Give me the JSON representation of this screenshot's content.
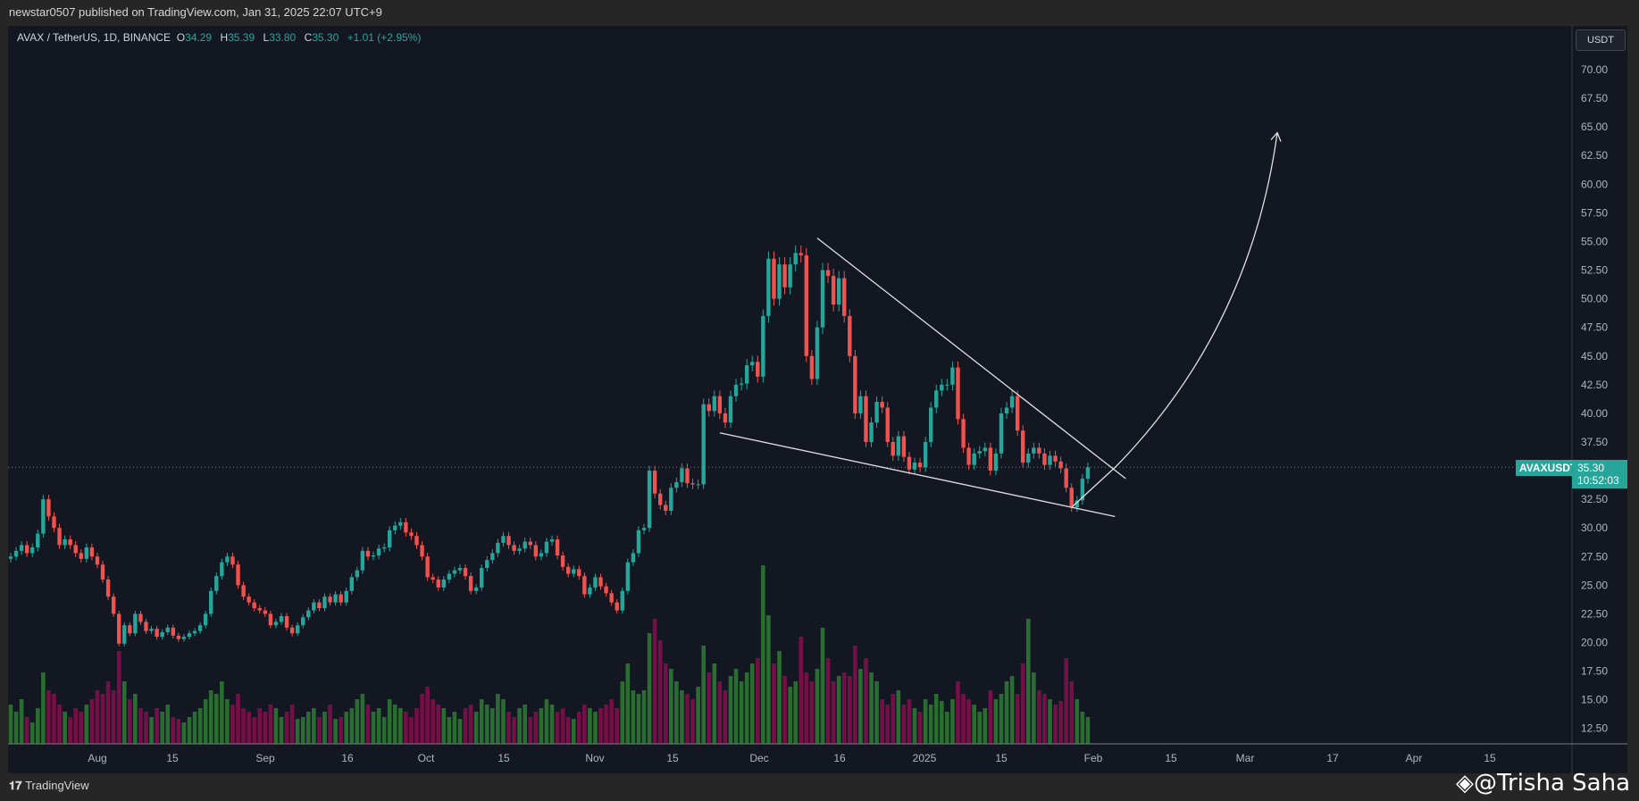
{
  "header": {
    "published": "newstar0507 published on TradingView.com, Jan 31, 2025 22:07 UTC+9"
  },
  "legend": {
    "symbol": "AVAX / TetherUS, 1D, BINANCE",
    "o_label": "O",
    "o": "34.29",
    "h_label": "H",
    "h": "35.39",
    "l_label": "L",
    "l": "33.80",
    "c_label": "C",
    "c": "35.30",
    "change": "+1.01 (+2.95%)"
  },
  "price_axis": {
    "currency": "USDT",
    "last_symbol": "AVAXUSDT",
    "last_price": "35.30",
    "countdown": "10:52:03"
  },
  "footer": {
    "logo": "TradingView",
    "watermark": "@Trisha Saha"
  },
  "colors": {
    "up": "#26a69a",
    "down": "#ef5350",
    "vol_up": "#2e7d32",
    "vol_down": "#880e4f",
    "background": "#131722",
    "drawing": "#e0e0e0"
  },
  "chart_data": {
    "type": "candlestick",
    "title": "AVAX / TetherUS, 1D, BINANCE",
    "start_date": "2024-07-16",
    "end_date": "2025-01-31",
    "ylim": [
      11,
      72
    ],
    "y_ticks": [
      "70.00",
      "67.50",
      "65.00",
      "62.50",
      "60.00",
      "57.50",
      "55.00",
      "52.50",
      "50.00",
      "47.50",
      "45.00",
      "42.50",
      "40.00",
      "37.50",
      "35.00",
      "32.50",
      "30.00",
      "27.50",
      "25.00",
      "22.50",
      "20.00",
      "17.50",
      "15.00",
      "12.50"
    ],
    "x_ticks": [
      "Aug",
      "15",
      "Sep",
      "16",
      "Oct",
      "15",
      "Nov",
      "15",
      "Dec",
      "16",
      "2025",
      "15",
      "Feb",
      "15",
      "Mar",
      "17",
      "Apr",
      "15"
    ],
    "close": [
      27.5,
      28,
      28.5,
      27.8,
      28.3,
      29.5,
      32.5,
      31,
      30,
      28.5,
      29,
      28.5,
      27.8,
      27.3,
      28.3,
      27.5,
      26.8,
      25.5,
      24,
      22.5,
      19.9,
      21.5,
      20.8,
      22.5,
      21.8,
      21,
      21.2,
      20.5,
      20.9,
      21.3,
      20.6,
      20.3,
      20.5,
      20.8,
      21,
      21.5,
      22.5,
      24.5,
      25.8,
      27,
      27.5,
      26.8,
      25,
      24,
      23.5,
      23,
      22.8,
      22.5,
      21.5,
      21.8,
      22.3,
      21.3,
      20.8,
      21.5,
      22.2,
      22.8,
      23.5,
      23,
      24,
      23.5,
      24.2,
      23.5,
      24.5,
      25.7,
      26.3,
      28,
      27.5,
      27.6,
      28.2,
      28.3,
      29.8,
      30.2,
      30.5,
      29.6,
      29.3,
      28.5,
      27.5,
      25.7,
      25.5,
      24.8,
      25.5,
      26,
      26.3,
      26.5,
      25.8,
      24.5,
      24.8,
      26.5,
      27.2,
      27.8,
      28.7,
      29.3,
      28.5,
      28,
      28.2,
      28.8,
      28.5,
      27.5,
      27.8,
      28.8,
      29,
      27.6,
      26.6,
      26,
      26.4,
      25.8,
      24.2,
      24.8,
      25.7,
      24.9,
      24.3,
      23.5,
      22.8,
      24.5,
      27,
      27.8,
      29.8,
      30,
      35,
      33,
      32,
      31.5,
      33.5,
      34,
      35.2,
      33.9,
      33.8,
      33.8,
      40.8,
      40.2,
      41.5,
      40,
      39.2,
      41.5,
      42.5,
      42.6,
      44.2,
      44.5,
      43.2,
      48.5,
      53.5,
      50,
      53,
      51,
      53,
      54,
      53.8,
      45,
      43,
      47.5,
      52.5,
      52,
      49.5,
      51.8,
      48.5,
      45,
      40,
      41.5,
      37.5,
      39.2,
      41,
      40.5,
      37.5,
      36.3,
      38,
      36.2,
      35.1,
      35.7,
      35.3,
      37.5,
      40.5,
      42,
      42.5,
      42.5,
      44,
      39.5,
      37,
      35.5,
      36.5,
      36.7,
      37,
      35,
      36.5,
      40,
      40.5,
      41.5,
      38.5,
      35.7,
      36.5,
      37,
      36.5,
      35.5,
      36.3,
      35.8,
      35.2,
      33.5,
      31.8,
      32.4,
      34.29,
      35.3
    ],
    "first_open": 27.3,
    "volume_relative": [
      22,
      18,
      25,
      15,
      12,
      20,
      40,
      30,
      28,
      22,
      18,
      15,
      20,
      18,
      22,
      25,
      30,
      28,
      35,
      30,
      52,
      35,
      25,
      28,
      20,
      18,
      15,
      20,
      18,
      22,
      15,
      14,
      12,
      15,
      18,
      20,
      25,
      30,
      28,
      35,
      25,
      22,
      28,
      20,
      18,
      15,
      20,
      18,
      22,
      20,
      15,
      18,
      22,
      14,
      15,
      18,
      20,
      15,
      18,
      22,
      14,
      15,
      18,
      20,
      25,
      28,
      22,
      18,
      20,
      15,
      25,
      22,
      20,
      18,
      15,
      20,
      28,
      32,
      25,
      22,
      20,
      15,
      18,
      14,
      20,
      22,
      18,
      25,
      22,
      20,
      28,
      25,
      18,
      15,
      20,
      22,
      15,
      18,
      20,
      25,
      22,
      18,
      20,
      15,
      14,
      18,
      22,
      20,
      18,
      20,
      22,
      25,
      20,
      35,
      45,
      30,
      28,
      30,
      62,
      70,
      58,
      45,
      42,
      35,
      30,
      28,
      25,
      32,
      55,
      40,
      45,
      35,
      30,
      38,
      42,
      35,
      40,
      45,
      48,
      100,
      72,
      45,
      52,
      38,
      32,
      35,
      60,
      40,
      35,
      42,
      65,
      48,
      35,
      38,
      40,
      38,
      55,
      42,
      48,
      40,
      35,
      25,
      22,
      28,
      30,
      22,
      25,
      20,
      18,
      25,
      22,
      28,
      24,
      18,
      25,
      35,
      28,
      25,
      22,
      18,
      20,
      30,
      25,
      28,
      35,
      38,
      28,
      45,
      70,
      40,
      30,
      28,
      25,
      22,
      24,
      48,
      35,
      25,
      18,
      15
    ],
    "last_price_line": 35.3,
    "drawings": [
      {
        "type": "trendline",
        "name": "falling-wedge-upper",
        "from": [
          "2024-12-12",
          55.3
        ],
        "to": [
          "2025-02-07",
          34.3
        ]
      },
      {
        "type": "trendline",
        "name": "falling-wedge-lower",
        "from": [
          "2024-11-24",
          38.3
        ],
        "to": [
          "2025-02-05",
          31.0
        ]
      },
      {
        "type": "arrow-curve",
        "name": "projection-arrow",
        "from": [
          "2025-01-28",
          31.8
        ],
        "to": [
          "2025-03-07",
          64.5
        ]
      }
    ]
  }
}
